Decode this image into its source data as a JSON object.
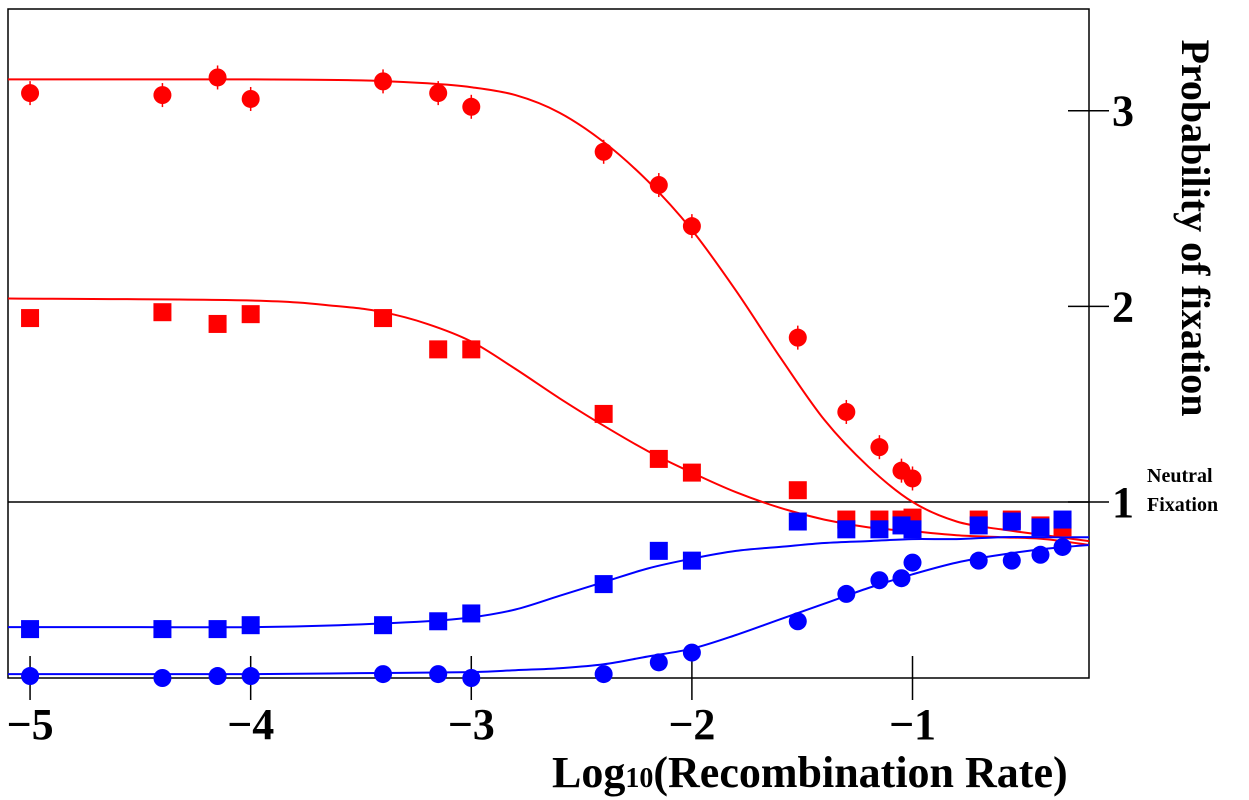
{
  "chart_data": {
    "type": "scatter",
    "xlabel_main": "Log",
    "xlabel_sub": "10",
    "xlabel_rest": "(Recombination Rate)",
    "ylabel": "Probability of fixation",
    "xlim": [
      -5.1,
      -0.2
    ],
    "ylim": [
      0.1,
      3.52
    ],
    "x_ticks": [
      -5,
      -4,
      -3,
      -2,
      -1
    ],
    "x_tick_labels": [
      "−5",
      "−4",
      "−3",
      "−2",
      "−1"
    ],
    "y_ticks": [
      1,
      2,
      3
    ],
    "y_tick_labels": [
      "1",
      "2",
      "3"
    ],
    "reference_line": {
      "y": 1,
      "label_line1": "Neutral",
      "label_line2": "Fixation"
    },
    "grid": false,
    "legend": "none",
    "series": [
      {
        "marker": "circle",
        "color": "#ff0000",
        "error_bars": true,
        "points": [
          [
            -5.0,
            3.09
          ],
          [
            -4.4,
            3.08
          ],
          [
            -4.15,
            3.17
          ],
          [
            -4.0,
            3.06
          ],
          [
            -3.4,
            3.15
          ],
          [
            -3.15,
            3.09
          ],
          [
            -3.0,
            3.02
          ],
          [
            -2.4,
            2.79
          ],
          [
            -2.15,
            2.62
          ],
          [
            -2.0,
            2.41
          ],
          [
            -1.52,
            1.84
          ],
          [
            -1.3,
            1.46
          ],
          [
            -1.15,
            1.28
          ],
          [
            -1.05,
            1.16
          ],
          [
            -1.0,
            1.12
          ]
        ],
        "fit": [
          [
            -5.1,
            3.16
          ],
          [
            -4.0,
            3.16
          ],
          [
            -3.5,
            3.155
          ],
          [
            -3.2,
            3.14
          ],
          [
            -3.0,
            3.12
          ],
          [
            -2.8,
            3.08
          ],
          [
            -2.6,
            2.99
          ],
          [
            -2.4,
            2.84
          ],
          [
            -2.2,
            2.64
          ],
          [
            -2.0,
            2.39
          ],
          [
            -1.8,
            2.08
          ],
          [
            -1.6,
            1.74
          ],
          [
            -1.4,
            1.42
          ],
          [
            -1.2,
            1.18
          ],
          [
            -1.0,
            1.0
          ],
          [
            -0.8,
            0.9
          ],
          [
            -0.6,
            0.86
          ],
          [
            -0.4,
            0.83
          ],
          [
            -0.2,
            0.8
          ]
        ]
      },
      {
        "marker": "square",
        "color": "#ff0000",
        "error_bars": false,
        "points": [
          [
            -5.0,
            1.94
          ],
          [
            -4.4,
            1.97
          ],
          [
            -4.15,
            1.91
          ],
          [
            -4.0,
            1.96
          ],
          [
            -3.4,
            1.94
          ],
          [
            -3.15,
            1.78
          ],
          [
            -3.0,
            1.78
          ],
          [
            -2.4,
            1.45
          ],
          [
            -2.15,
            1.22
          ],
          [
            -2.0,
            1.15
          ],
          [
            -1.52,
            1.06
          ],
          [
            -1.3,
            0.91
          ],
          [
            -1.15,
            0.91
          ],
          [
            -1.05,
            0.91
          ],
          [
            -1.0,
            0.92
          ],
          [
            -0.7,
            0.91
          ],
          [
            -0.55,
            0.91
          ],
          [
            -0.42,
            0.88
          ],
          [
            -0.32,
            0.87
          ]
        ],
        "fit": [
          [
            -5.1,
            2.04
          ],
          [
            -4.0,
            2.03
          ],
          [
            -3.6,
            2.0
          ],
          [
            -3.4,
            1.97
          ],
          [
            -3.2,
            1.91
          ],
          [
            -3.0,
            1.82
          ],
          [
            -2.8,
            1.68
          ],
          [
            -2.6,
            1.53
          ],
          [
            -2.4,
            1.39
          ],
          [
            -2.2,
            1.26
          ],
          [
            -2.0,
            1.15
          ],
          [
            -1.8,
            1.05
          ],
          [
            -1.6,
            0.97
          ],
          [
            -1.4,
            0.91
          ],
          [
            -1.2,
            0.87
          ],
          [
            -1.0,
            0.85
          ],
          [
            -0.8,
            0.83
          ],
          [
            -0.6,
            0.82
          ],
          [
            -0.4,
            0.81
          ],
          [
            -0.2,
            0.78
          ]
        ]
      },
      {
        "marker": "square",
        "color": "#0000ff",
        "error_bars": false,
        "points": [
          [
            -5.0,
            0.35
          ],
          [
            -4.4,
            0.35
          ],
          [
            -4.15,
            0.35
          ],
          [
            -4.0,
            0.37
          ],
          [
            -3.4,
            0.37
          ],
          [
            -3.15,
            0.39
          ],
          [
            -3.0,
            0.43
          ],
          [
            -2.4,
            0.58
          ],
          [
            -2.15,
            0.75
          ],
          [
            -2.0,
            0.7
          ],
          [
            -1.52,
            0.9
          ],
          [
            -1.3,
            0.86
          ],
          [
            -1.15,
            0.86
          ],
          [
            -1.05,
            0.88
          ],
          [
            -1.0,
            0.86
          ],
          [
            -0.7,
            0.88
          ],
          [
            -0.55,
            0.9
          ],
          [
            -0.42,
            0.87
          ],
          [
            -0.32,
            0.91
          ]
        ],
        "fit": [
          [
            -5.1,
            0.36
          ],
          [
            -4.5,
            0.36
          ],
          [
            -4.0,
            0.36
          ],
          [
            -3.6,
            0.37
          ],
          [
            -3.2,
            0.39
          ],
          [
            -3.0,
            0.41
          ],
          [
            -2.8,
            0.45
          ],
          [
            -2.6,
            0.52
          ],
          [
            -2.4,
            0.59
          ],
          [
            -2.2,
            0.66
          ],
          [
            -2.0,
            0.71
          ],
          [
            -1.8,
            0.75
          ],
          [
            -1.6,
            0.77
          ],
          [
            -1.4,
            0.79
          ],
          [
            -1.2,
            0.8
          ],
          [
            -1.0,
            0.81
          ],
          [
            -0.8,
            0.81
          ],
          [
            -0.6,
            0.82
          ],
          [
            -0.4,
            0.82
          ],
          [
            -0.2,
            0.82
          ]
        ]
      },
      {
        "marker": "circle",
        "color": "#0000ff",
        "error_bars": false,
        "points": [
          [
            -5.0,
            0.11
          ],
          [
            -4.4,
            0.1
          ],
          [
            -4.15,
            0.11
          ],
          [
            -4.0,
            0.11
          ],
          [
            -3.4,
            0.12
          ],
          [
            -3.15,
            0.12
          ],
          [
            -3.0,
            0.1
          ],
          [
            -2.4,
            0.12
          ],
          [
            -2.15,
            0.18
          ],
          [
            -2.0,
            0.23
          ],
          [
            -1.52,
            0.39
          ],
          [
            -1.3,
            0.53
          ],
          [
            -1.15,
            0.6
          ],
          [
            -1.05,
            0.61
          ],
          [
            -1.0,
            0.69
          ],
          [
            -0.7,
            0.7
          ],
          [
            -0.55,
            0.7
          ],
          [
            -0.42,
            0.73
          ],
          [
            -0.32,
            0.77
          ]
        ],
        "fit": [
          [
            -5.1,
            0.12
          ],
          [
            -4.0,
            0.12
          ],
          [
            -3.5,
            0.125
          ],
          [
            -3.0,
            0.13
          ],
          [
            -2.8,
            0.14
          ],
          [
            -2.6,
            0.15
          ],
          [
            -2.4,
            0.17
          ],
          [
            -2.2,
            0.21
          ],
          [
            -2.0,
            0.25
          ],
          [
            -1.8,
            0.32
          ],
          [
            -1.6,
            0.4
          ],
          [
            -1.4,
            0.48
          ],
          [
            -1.2,
            0.56
          ],
          [
            -1.0,
            0.63
          ],
          [
            -0.8,
            0.69
          ],
          [
            -0.6,
            0.73
          ],
          [
            -0.4,
            0.76
          ],
          [
            -0.2,
            0.78
          ]
        ]
      }
    ]
  }
}
